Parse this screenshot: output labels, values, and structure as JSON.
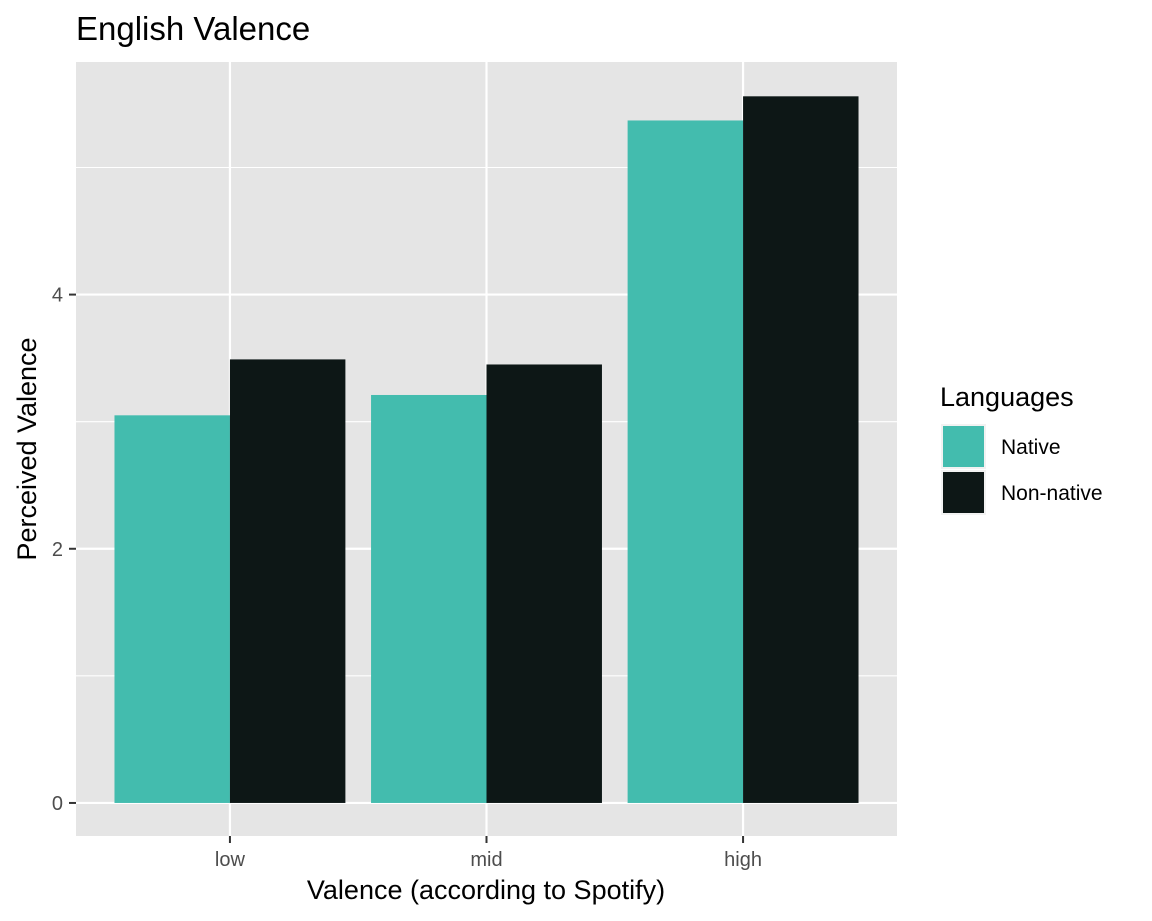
{
  "chart_data": {
    "type": "bar",
    "title": "English Valence",
    "xlabel": "Valence (according to Spotify)",
    "ylabel": "Perceived Valence",
    "categories": [
      "low",
      "mid",
      "high"
    ],
    "series": [
      {
        "name": "Native",
        "values": [
          3.05,
          3.21,
          5.37
        ],
        "color": "#43BCAE"
      },
      {
        "name": "Non-native",
        "values": [
          3.49,
          3.45,
          5.56
        ],
        "color": "#0D1716"
      }
    ],
    "ylim": [
      -0.26,
      5.83
    ],
    "yticks": [
      0,
      2,
      4
    ],
    "grid": true,
    "legend": {
      "title": "Languages",
      "position": "right"
    },
    "panel_background": "#E5E5E5",
    "grid_color": "#FFFFFF"
  }
}
